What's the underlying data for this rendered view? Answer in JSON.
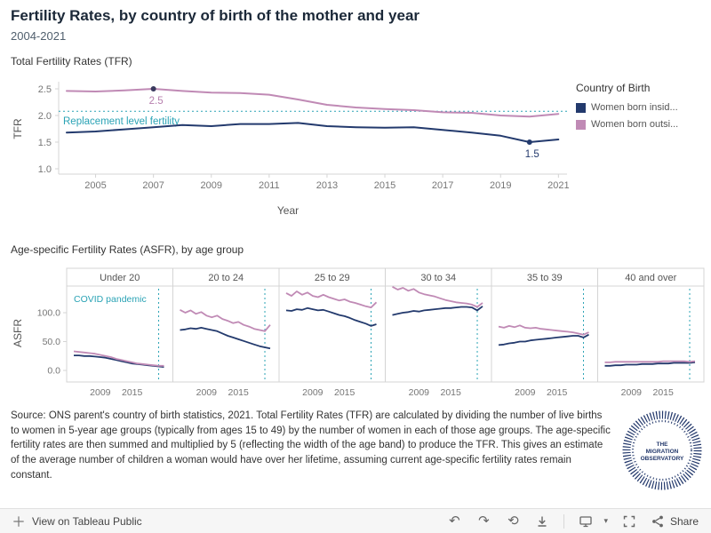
{
  "header": {
    "title": "Fertility Rates, by country of birth of the mother and year",
    "subtitle": "2004-2021"
  },
  "sections": {
    "tfr_label": "Total Fertility Rates (TFR)",
    "asfr_label": "Age-specific Fertility Rates (ASFR), by age group"
  },
  "legend": {
    "title": "Country of Birth",
    "items": [
      {
        "label": "Women born insid...",
        "color": "#233a6d"
      },
      {
        "label": "Women born outsi...",
        "color": "#c08ab5"
      }
    ]
  },
  "colors": {
    "inside": "#233a6d",
    "outside": "#c08ab5",
    "teal": "#2aa3b5",
    "axis": "#d4d4d4",
    "tick_text": "#767676"
  },
  "chart_data": [
    {
      "type": "line",
      "title": "Total Fertility Rates (TFR)",
      "xlabel": "Year",
      "ylabel": "TFR",
      "x": [
        2004,
        2005,
        2006,
        2007,
        2008,
        2009,
        2010,
        2011,
        2012,
        2013,
        2014,
        2015,
        2016,
        2017,
        2018,
        2019,
        2020,
        2021
      ],
      "xticks": [
        2005,
        2007,
        2009,
        2011,
        2013,
        2015,
        2017,
        2019,
        2021
      ],
      "yticks": [
        1.0,
        1.5,
        2.0,
        2.5
      ],
      "ylim": [
        0.9,
        2.6
      ],
      "series": [
        {
          "name": "Women born insid...",
          "color": "#233a6d",
          "values": [
            1.68,
            1.7,
            1.74,
            1.78,
            1.82,
            1.8,
            1.84,
            1.84,
            1.86,
            1.8,
            1.78,
            1.77,
            1.78,
            1.73,
            1.68,
            1.62,
            1.5,
            1.55
          ]
        },
        {
          "name": "Women born outsi...",
          "color": "#c08ab5",
          "values": [
            2.46,
            2.45,
            2.47,
            2.5,
            2.46,
            2.43,
            2.42,
            2.39,
            2.3,
            2.2,
            2.15,
            2.12,
            2.1,
            2.06,
            2.05,
            2.0,
            1.98,
            2.03
          ]
        }
      ],
      "reference_line": {
        "value": 2.08,
        "label": "Replacement level fertility",
        "color": "#2aa3b5"
      },
      "annotations": [
        {
          "x": 2007,
          "y": 2.5,
          "label": "2.5",
          "text_color": "#b77fae",
          "dot_color": "#3a3a5e"
        },
        {
          "x": 2020,
          "y": 1.5,
          "label": "1.5",
          "text_color": "#233a6d",
          "dot_color": "#233a6d"
        }
      ]
    },
    {
      "type": "line",
      "subtype": "small-multiples",
      "title": "Age-specific Fertility Rates (ASFR), by age group",
      "ylabel": "ASFR",
      "x": [
        2004,
        2005,
        2006,
        2007,
        2008,
        2009,
        2010,
        2011,
        2012,
        2013,
        2014,
        2015,
        2016,
        2017,
        2018,
        2019,
        2020,
        2021
      ],
      "xticks": [
        2009,
        2015
      ],
      "yticks": [
        0,
        50,
        100
      ],
      "ylim": [
        -20,
        146
      ],
      "covid_line": {
        "x": 2020,
        "label": "COVID pandemic",
        "color": "#2aa3b5"
      },
      "panels": [
        {
          "label": "Under 20",
          "series": [
            {
              "name": "Women born insid...",
              "color": "#233a6d",
              "values": [
                26,
                26,
                25,
                25,
                24,
                23,
                22,
                20,
                18,
                16,
                14,
                12,
                11,
                10,
                9,
                8,
                7,
                6
              ]
            },
            {
              "name": "Women born outsi...",
              "color": "#c08ab5",
              "values": [
                33,
                32,
                31,
                30,
                29,
                27,
                25,
                23,
                20,
                18,
                16,
                14,
                12,
                11,
                10,
                9,
                8,
                8
              ]
            }
          ]
        },
        {
          "label": "20 to 24",
          "series": [
            {
              "name": "Women born insid...",
              "color": "#233a6d",
              "values": [
                70,
                71,
                73,
                72,
                74,
                72,
                70,
                68,
                64,
                60,
                57,
                54,
                51,
                48,
                45,
                42,
                40,
                38
              ]
            },
            {
              "name": "Women born outsi...",
              "color": "#c08ab5",
              "values": [
                105,
                100,
                104,
                98,
                101,
                95,
                92,
                95,
                89,
                86,
                82,
                84,
                79,
                76,
                72,
                70,
                68,
                79
              ]
            }
          ]
        },
        {
          "label": "25 to 29",
          "series": [
            {
              "name": "Women born insid...",
              "color": "#233a6d",
              "values": [
                104,
                103,
                106,
                105,
                108,
                106,
                104,
                105,
                102,
                99,
                96,
                94,
                91,
                87,
                84,
                81,
                77,
                80
              ]
            },
            {
              "name": "Women born outsi...",
              "color": "#c08ab5",
              "values": [
                134,
                129,
                137,
                131,
                135,
                129,
                127,
                131,
                127,
                124,
                121,
                123,
                119,
                117,
                114,
                111,
                109,
                118
              ]
            }
          ]
        },
        {
          "label": "30 to 34",
          "series": [
            {
              "name": "Women born insid...",
              "color": "#233a6d",
              "values": [
                96,
                98,
                100,
                101,
                103,
                102,
                104,
                105,
                106,
                107,
                108,
                108,
                109,
                110,
                110,
                109,
                104,
                111
              ]
            },
            {
              "name": "Women born outsi...",
              "color": "#c08ab5",
              "values": [
                145,
                140,
                143,
                138,
                141,
                135,
                132,
                130,
                128,
                125,
                122,
                120,
                118,
                117,
                116,
                114,
                110,
                117
              ]
            }
          ]
        },
        {
          "label": "35 to 39",
          "series": [
            {
              "name": "Women born insid...",
              "color": "#233a6d",
              "values": [
                44,
                45,
                47,
                48,
                50,
                50,
                52,
                53,
                54,
                55,
                56,
                57,
                58,
                59,
                60,
                60,
                57,
                62
              ]
            },
            {
              "name": "Women born outsi...",
              "color": "#c08ab5",
              "values": [
                76,
                74,
                77,
                75,
                78,
                74,
                73,
                74,
                72,
                71,
                70,
                69,
                68,
                67,
                66,
                64,
                62,
                66
              ]
            }
          ]
        },
        {
          "label": "40 and over",
          "series": [
            {
              "name": "Women born insid...",
              "color": "#233a6d",
              "values": [
                8,
                8,
                9,
                9,
                10,
                10,
                10,
                11,
                11,
                11,
                12,
                12,
                12,
                13,
                13,
                13,
                13,
                14
              ]
            },
            {
              "name": "Women born outsi...",
              "color": "#c08ab5",
              "values": [
                14,
                14,
                15,
                15,
                15,
                15,
                15,
                15,
                15,
                15,
                15,
                16,
                16,
                16,
                16,
                16,
                15,
                16
              ]
            }
          ]
        }
      ]
    }
  ],
  "footer": {
    "source_text": "Source:  ONS parent's country of birth statistics, 2021. Total Fertility Rates (TFR) are  calculated by dividing the number of live births to women in 5-year age groups (typically from ages 15 to 49) by the number of women in each of those age groups. The age-specific fertility rates are then summed and multiplied by 5 (reflecting the width of the age band) to produce the TFR. This gives an estimate of the average number of children a woman would have over her lifetime, assuming current age-specific fertility rates remain constant."
  },
  "logo": {
    "line1": "THE",
    "line2": "MIGRATION",
    "line3": "OBSERVATORY"
  },
  "toolbar": {
    "view_label": "View on Tableau Public",
    "share_label": "Share",
    "icons": {
      "undo": "↶",
      "redo": "↷",
      "reset": "⟲",
      "caret": "▾"
    }
  }
}
